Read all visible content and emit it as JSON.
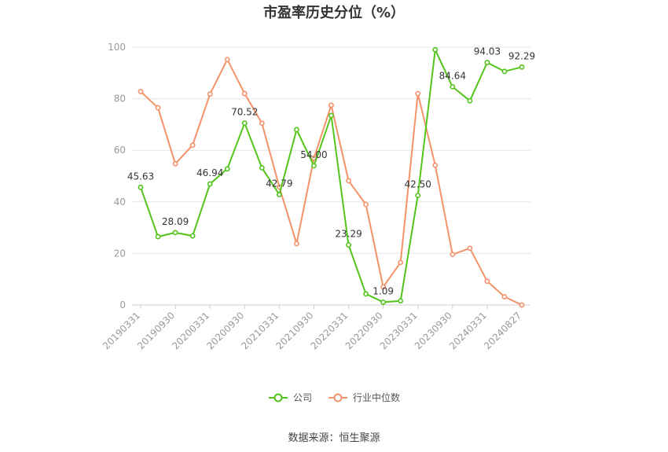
{
  "chart_data": {
    "type": "line",
    "title": "市盈率历史分位（%）",
    "xlabel": "",
    "ylabel": "",
    "ylim": [
      0,
      100
    ],
    "yticks": [
      "0",
      "20",
      "40",
      "60",
      "80",
      "100"
    ],
    "x_tick_labels": [
      "20190331",
      "20190930",
      "20200331",
      "20200930",
      "20210331",
      "20210930",
      "20220331",
      "20220930",
      "20230331",
      "20230930",
      "20240331",
      "20240827"
    ],
    "point_count": 23,
    "legend_position": "bottom",
    "grid": true,
    "series": [
      {
        "name": "公司",
        "color": "#52c41a",
        "values": [
          45.63,
          26.5,
          28.09,
          26.8,
          46.94,
          52.8,
          70.52,
          53.2,
          42.79,
          68.0,
          54.0,
          73.5,
          23.29,
          4.3,
          1.09,
          1.6,
          42.5,
          99.0,
          84.64,
          79.2,
          94.03,
          90.6,
          92.29
        ],
        "labels": {
          "0": "45.63",
          "2": "28.09",
          "4": "46.94",
          "6": "70.52",
          "8": "42.79",
          "10": "54.00",
          "12": "23.29",
          "14": "1.09",
          "16": "42.50",
          "18": "84.64",
          "20": "94.03",
          "22": "92.29"
        }
      },
      {
        "name": "行业中位数",
        "color": "#f4926a",
        "values": [
          82.8,
          76.5,
          54.8,
          62.0,
          81.8,
          95.2,
          82.0,
          70.5,
          45.8,
          23.8,
          57.0,
          77.5,
          48.2,
          39.0,
          7.0,
          16.5,
          82.0,
          54.2,
          19.6,
          22.0,
          9.2,
          3.2,
          0.0
        ]
      }
    ]
  },
  "legend": [
    {
      "label": "公司",
      "color": "#52c41a"
    },
    {
      "label": "行业中位数",
      "color": "#f4926a"
    }
  ],
  "source": "数据来源：恒生聚源"
}
